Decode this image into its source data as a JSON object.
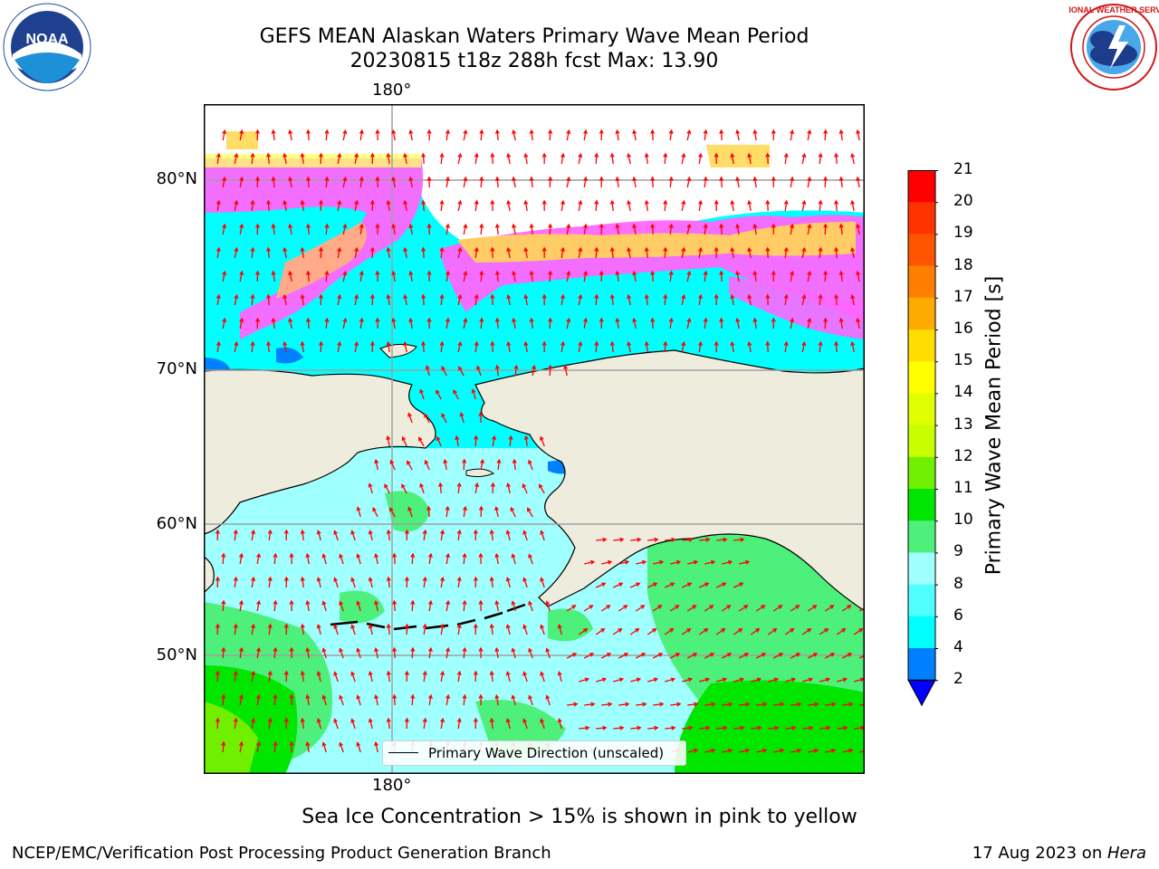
{
  "title": {
    "line1": "GEFS MEAN Alaskan Waters Primary Wave Mean Period",
    "line2": "20230815 t18z 288h fcst   Max: 13.90"
  },
  "logos": {
    "left": {
      "name": "noaa-logo",
      "text": "NOAA"
    },
    "right": {
      "name": "nws-logo",
      "text": "NATIONAL WEATHER SERVICE"
    }
  },
  "map": {
    "lon_label_top": "180°",
    "lon_label_bottom": "180°",
    "lat_labels": [
      "80°N",
      "70°N",
      "60°N",
      "50°N"
    ],
    "legend_label": "Primary Wave Direction (unscaled)",
    "arrow_color": "#ff0000",
    "land_color": "#eeecdc"
  },
  "colorbar": {
    "title": "Primary Wave Mean Period [s]",
    "ticks": [
      "21",
      "20",
      "19",
      "18",
      "17",
      "16",
      "15",
      "14",
      "13",
      "12",
      "11",
      "10",
      "9",
      "8",
      "6",
      "4",
      "2"
    ],
    "colors": [
      "#ff0000",
      "#ff3300",
      "#ff5500",
      "#ff8000",
      "#ffaa00",
      "#ffdd00",
      "#ffff00",
      "#e0ff00",
      "#c8ff00",
      "#70f000",
      "#00e600",
      "#4cf07a",
      "#a0ffff",
      "#50ffff",
      "#00ffff",
      "#0080ff",
      "#0000ff"
    ]
  },
  "footnote": "Sea Ice Concentration > 15% is shown in pink to yellow",
  "credit": "NCEP/EMC/Verification Post Processing Product Generation Branch",
  "date": {
    "text": "17 Aug 2023 on ",
    "host": "Hera"
  }
}
